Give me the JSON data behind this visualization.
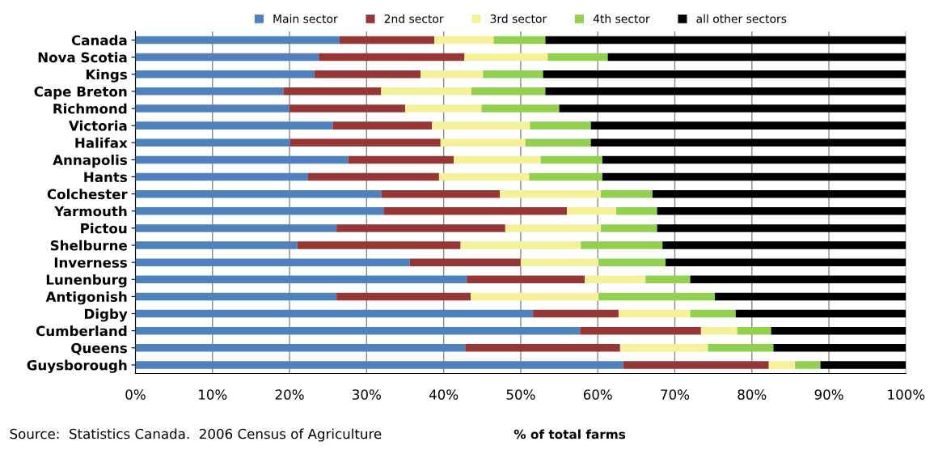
{
  "chart_data": {
    "type": "bar",
    "orientation": "horizontal",
    "stacked": true,
    "xlabel": "% of total farms",
    "categories": [
      "Canada",
      "Nova Scotia",
      "Kings",
      "Cape Breton",
      "Richmond",
      "Victoria",
      "Halifax",
      "Annapolis",
      "Hants",
      "Colchester",
      "Yarmouth",
      "Pictou",
      "Shelburne",
      "Inverness",
      "Lunenburg",
      "Antigonish",
      "Digby",
      "Cumberland",
      "Queens",
      "Guysborough"
    ],
    "series": [
      {
        "name": "Main sector",
        "color": "#4f81bd",
        "values": [
          26.5,
          23.8,
          23.2,
          19.2,
          20.0,
          25.6,
          20.1,
          27.6,
          22.4,
          31.9,
          32.2,
          26.1,
          21.0,
          35.6,
          43.0,
          26.1,
          51.6,
          57.7,
          42.8,
          63.3
        ]
      },
      {
        "name": "2nd sector",
        "color": "#953735",
        "values": [
          12.3,
          18.9,
          13.8,
          12.7,
          15.0,
          12.9,
          19.5,
          13.7,
          17.0,
          15.4,
          23.8,
          21.9,
          21.2,
          14.4,
          15.3,
          17.4,
          11.1,
          15.7,
          20.1,
          18.9
        ]
      },
      {
        "name": "3rd sector",
        "color": "#f5f09a",
        "values": [
          7.7,
          10.8,
          8.1,
          11.7,
          9.9,
          12.7,
          11.0,
          11.3,
          11.7,
          13.1,
          6.4,
          12.4,
          15.6,
          10.1,
          7.9,
          16.6,
          9.3,
          4.7,
          11.4,
          3.4
        ]
      },
      {
        "name": "4th sector",
        "color": "#92d050",
        "values": [
          6.7,
          7.8,
          7.8,
          9.6,
          10.1,
          7.9,
          8.5,
          8.0,
          9.5,
          6.7,
          5.3,
          7.3,
          10.6,
          8.7,
          5.8,
          15.1,
          5.9,
          4.4,
          8.5,
          3.3
        ]
      },
      {
        "name": "all other sectors",
        "color": "#000000",
        "values": [
          46.8,
          38.7,
          47.1,
          46.8,
          45.0,
          40.9,
          40.9,
          39.4,
          39.4,
          32.9,
          32.3,
          32.3,
          31.6,
          31.2,
          28.0,
          24.8,
          22.1,
          17.5,
          17.2,
          11.1
        ]
      }
    ],
    "xlim": [
      0,
      100
    ],
    "xticks": [
      {
        "value": 0,
        "label": "0%"
      },
      {
        "value": 10,
        "label": "10%"
      },
      {
        "value": 20,
        "label": "20%"
      },
      {
        "value": 30,
        "label": "30%"
      },
      {
        "value": 40,
        "label": "40%"
      },
      {
        "value": 50,
        "label": "50%"
      },
      {
        "value": 60,
        "label": "60%"
      },
      {
        "value": 70,
        "label": "70%"
      },
      {
        "value": 80,
        "label": "80%"
      },
      {
        "value": 90,
        "label": "90%"
      },
      {
        "value": 100,
        "label": "100%"
      }
    ],
    "grid": "x",
    "legend": "top",
    "annotations": [
      "Source:  Statistics Canada.  2006 Census of Agriculture"
    ]
  }
}
